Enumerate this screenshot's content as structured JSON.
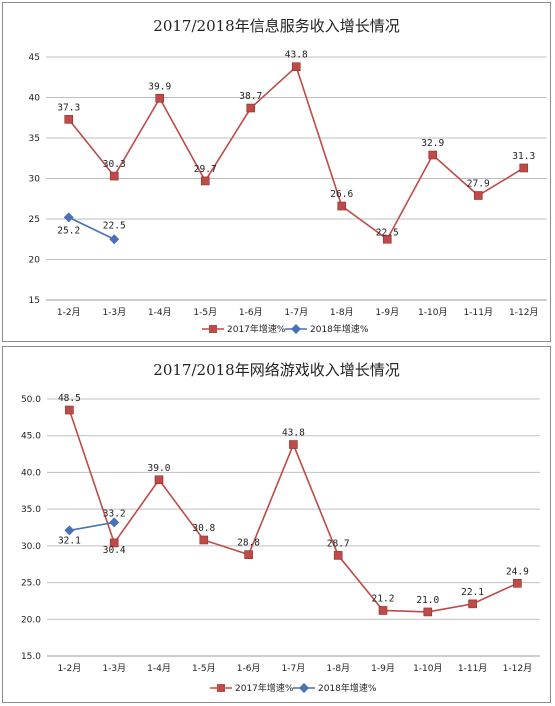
{
  "chart_data": [
    {
      "type": "line",
      "title": "2017/2018年信息服务收入增长情况",
      "categories": [
        "1-2月",
        "1-3月",
        "1-4月",
        "1-5月",
        "1-6月",
        "1-7月",
        "1-8月",
        "1-9月",
        "1-10月",
        "1-11月",
        "1-12月"
      ],
      "ylim": [
        15,
        45
      ],
      "yticks": [
        "15",
        "20",
        "25",
        "30",
        "35",
        "40",
        "45"
      ],
      "ytick_values": [
        15,
        20,
        25,
        30,
        35,
        40,
        45
      ],
      "grid": true,
      "legend_position": "bottom",
      "series": [
        {
          "name": "2017年增速%",
          "color": "#be4b48",
          "marker": "square",
          "values": [
            37.3,
            30.3,
            39.9,
            29.7,
            38.7,
            43.8,
            26.6,
            22.5,
            32.9,
            27.9,
            31.3
          ],
          "labels": [
            "37.3",
            "30.3",
            "39.9",
            "29.7",
            "38.7",
            "43.8",
            "26.6",
            "22.5",
            "32.9",
            "27.9",
            "31.3"
          ]
        },
        {
          "name": "2018年增速%",
          "color": "#4a70b5",
          "marker": "diamond",
          "values": [
            25.2,
            22.5,
            null,
            null,
            null,
            null,
            null,
            null,
            null,
            null,
            null
          ],
          "labels": [
            "25.2",
            "22.5"
          ]
        }
      ]
    },
    {
      "type": "line",
      "title": "2017/2018年网络游戏收入增长情况",
      "categories": [
        "1-2月",
        "1-3月",
        "1-4月",
        "1-5月",
        "1-6月",
        "1-7月",
        "1-8月",
        "1-9月",
        "1-10月",
        "1-11月",
        "1-12月"
      ],
      "ylim": [
        15,
        50
      ],
      "yticks": [
        "15.0",
        "20.0",
        "25.0",
        "30.0",
        "35.0",
        "40.0",
        "45.0",
        "50.0"
      ],
      "ytick_values": [
        15,
        20,
        25,
        30,
        35,
        40,
        45,
        50
      ],
      "grid": true,
      "legend_position": "bottom",
      "series": [
        {
          "name": "2017年增速%",
          "color": "#be4b48",
          "marker": "square",
          "values": [
            48.5,
            30.4,
            39.0,
            30.8,
            28.8,
            43.8,
            28.7,
            21.2,
            21.0,
            22.1,
            24.9
          ],
          "labels": [
            "48.5",
            "30.4",
            "39.0",
            "30.8",
            "28.8",
            "43.8",
            "28.7",
            "21.2",
            "21.0",
            "22.1",
            "24.9"
          ]
        },
        {
          "name": "2018年增速%",
          "color": "#4a70b5",
          "marker": "diamond",
          "values": [
            32.1,
            33.2,
            null,
            null,
            null,
            null,
            null,
            null,
            null,
            null,
            null
          ],
          "labels": [
            "32.1",
            "33.2"
          ]
        }
      ]
    }
  ]
}
